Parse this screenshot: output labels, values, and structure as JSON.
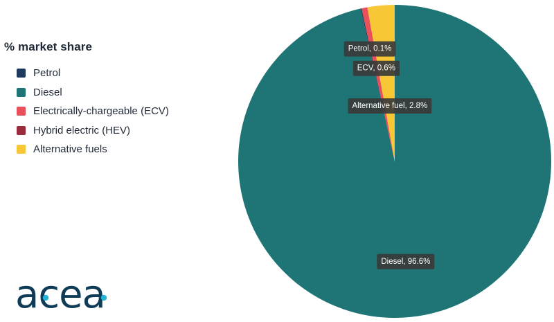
{
  "chart_data": {
    "type": "pie",
    "legend_title": "% market share",
    "legend_position": "left",
    "slices": [
      {
        "label": "Petrol",
        "value": 0.1,
        "color": "#1e3a5f",
        "annotation": "Petrol, 0.1%"
      },
      {
        "label": "Diesel",
        "value": 96.6,
        "color": "#1f7575",
        "annotation": "Diesel, 96.6%"
      },
      {
        "label": "Electrically-chargeable (ECV)",
        "value": 0.6,
        "color": "#e8505b",
        "annotation": "ECV, 0.6%"
      },
      {
        "label": "Hybrid electric (HEV)",
        "value": 0.0,
        "color": "#9b2c3e",
        "annotation": ""
      },
      {
        "label": "Alternative fuels",
        "value": 2.8,
        "color": "#f8c736",
        "annotation": "Alternative fuel, 2.8%"
      }
    ]
  },
  "brand": {
    "logo_text": "acea",
    "logo_color": "#0f3b57",
    "logo_accent": "#26b3d8"
  }
}
